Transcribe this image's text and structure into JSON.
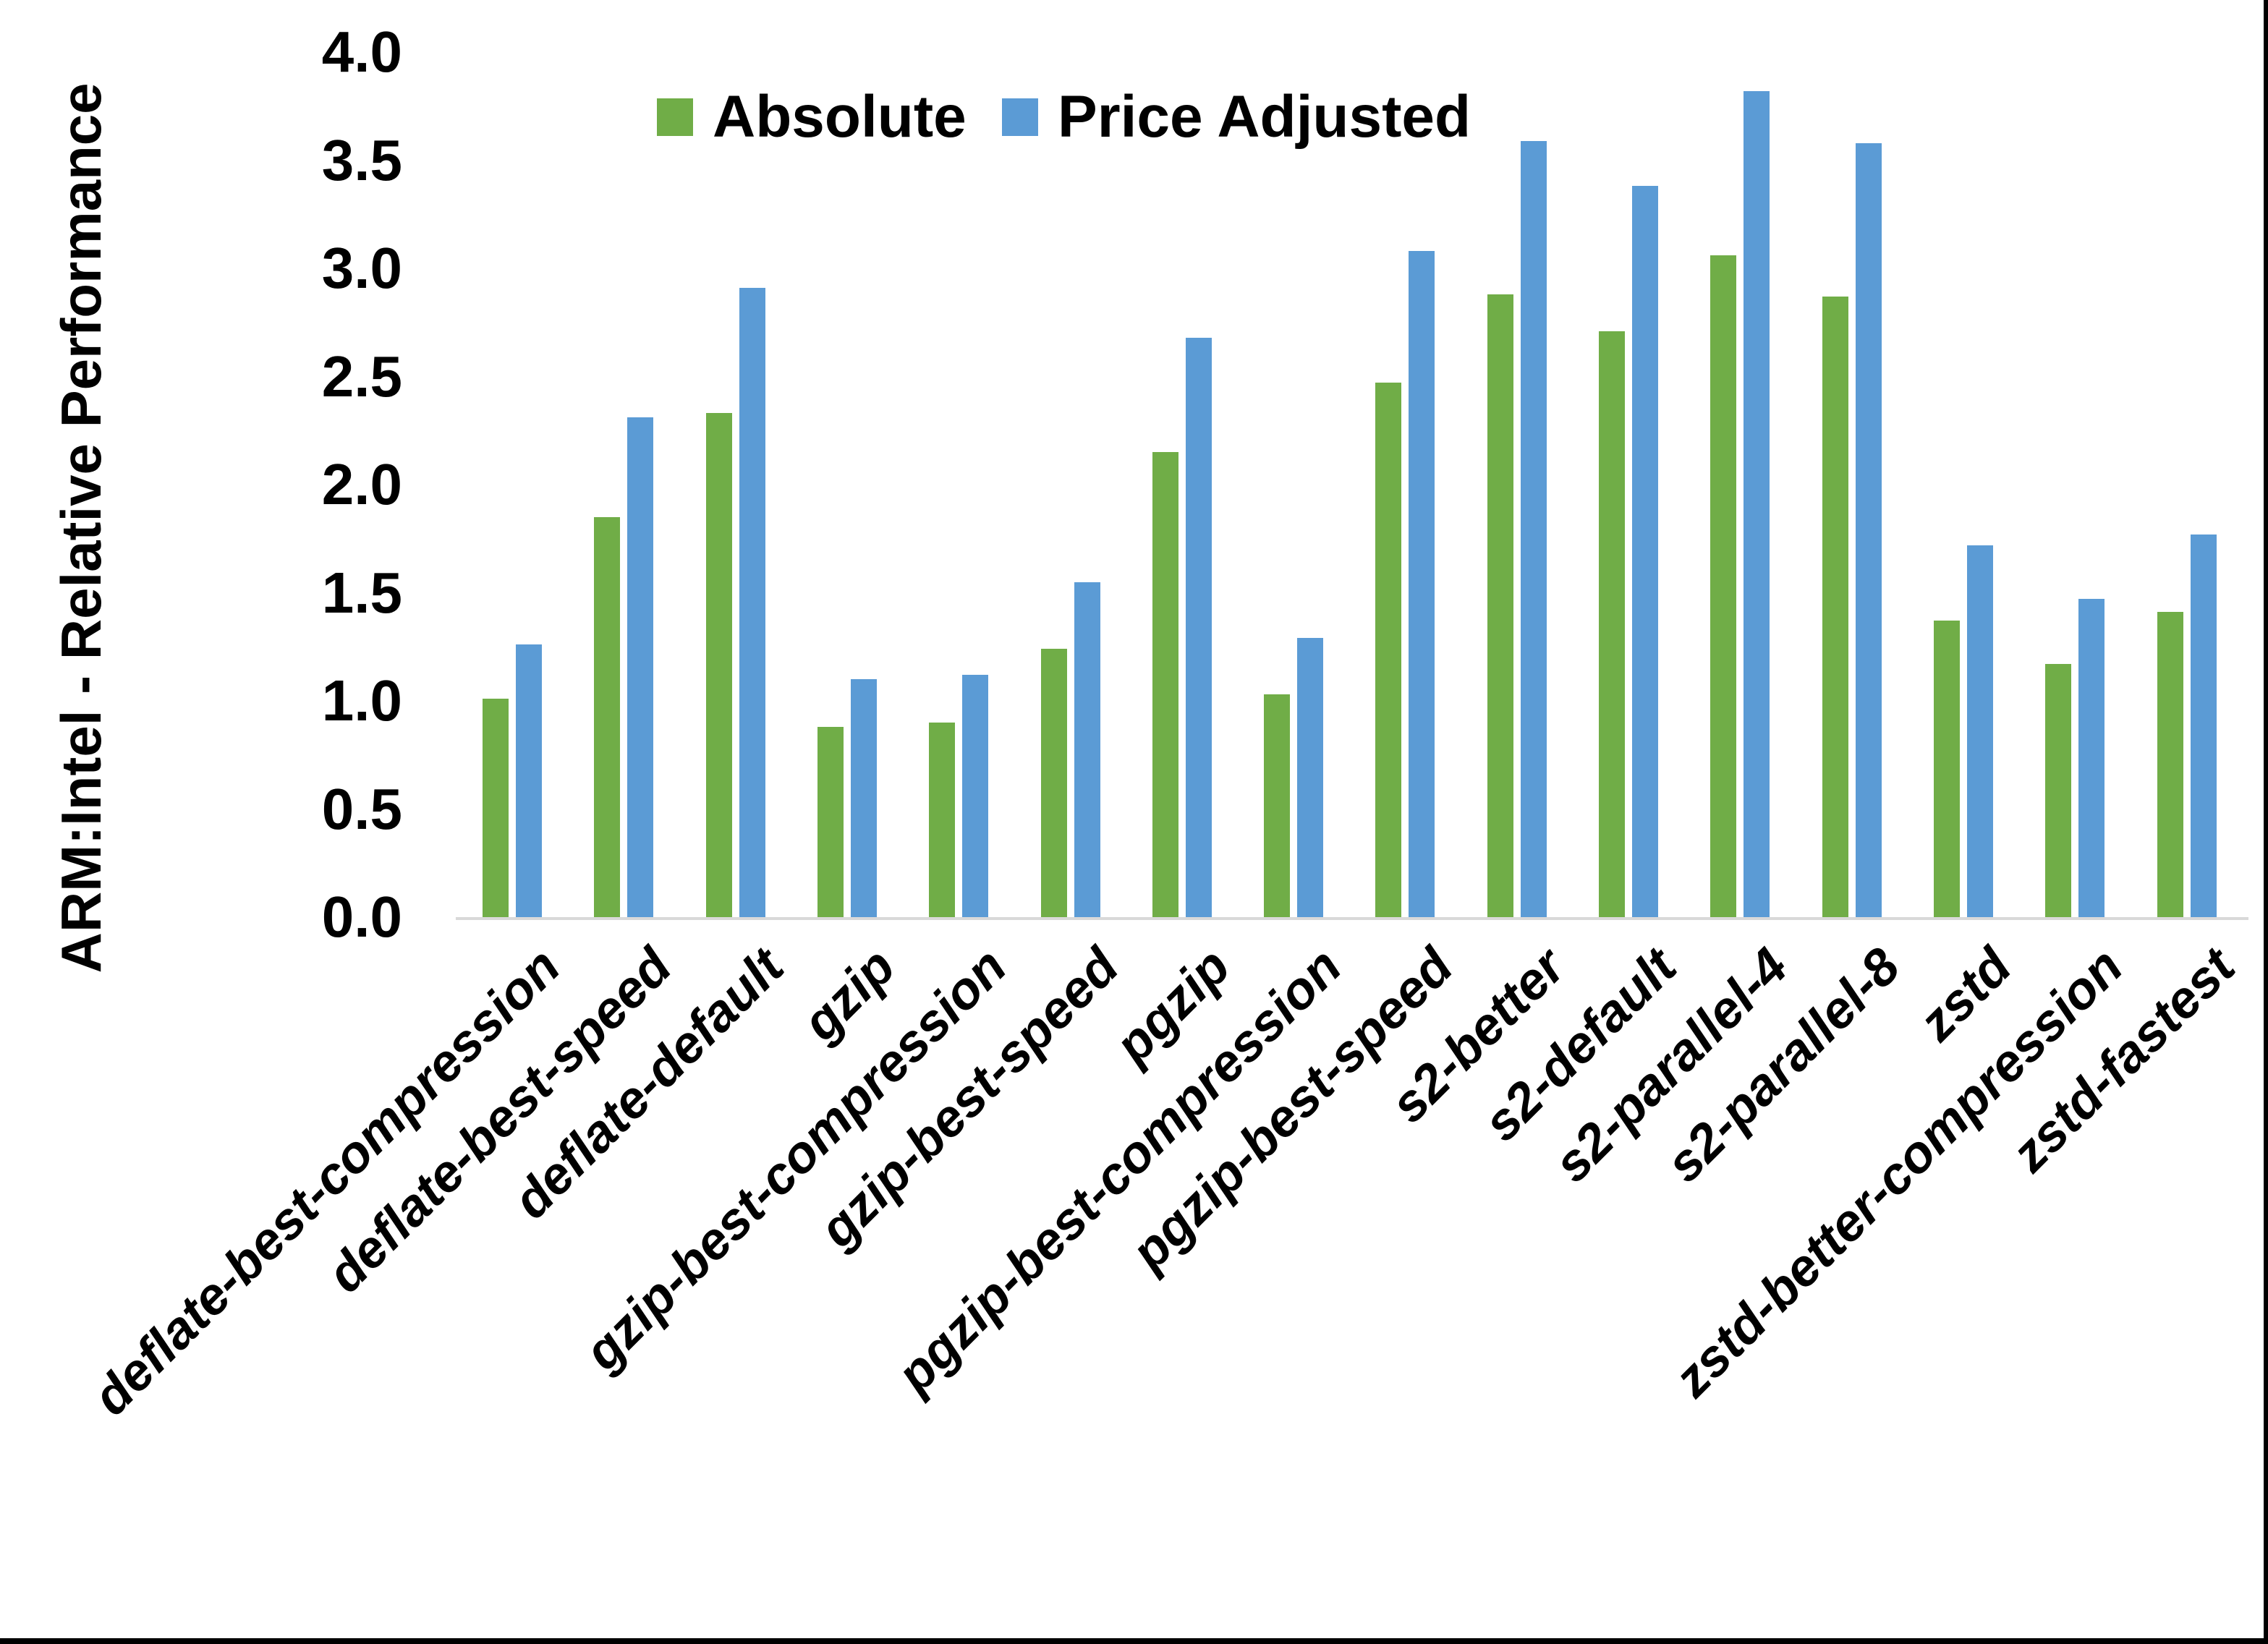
{
  "figure": {
    "background": "#FFFFFF",
    "frame_border_color": "#000000",
    "axis_line_color": "#D9D9D9",
    "text_color": "#000000"
  },
  "chart_data": {
    "type": "bar",
    "title": "",
    "xlabel": "",
    "ylabel": "ARM:Intel - Relative Performance",
    "ylim": [
      0.0,
      4.0
    ],
    "ytick_step": 0.5,
    "ytick_labels": [
      "0.0",
      "0.5",
      "1.0",
      "1.5",
      "2.0",
      "2.5",
      "3.0",
      "3.5",
      "4.0"
    ],
    "grid": false,
    "legend_position": "top-center",
    "categories": [
      "deflate-best-compression",
      "deflate-best-speed",
      "deflate-default",
      "gzip",
      "gzip-best-compression",
      "gzip-best-speed",
      "pgzip",
      "pgzip-best-compression",
      "pgzip-best-speed",
      "s2-better",
      "s2-default",
      "s2-parallel-4",
      "s2-parallel-8",
      "zstd",
      "zstd-better-compression",
      "zstd-fastest"
    ],
    "series": [
      {
        "name": "Absolute",
        "color": "#70AD47",
        "values": [
          1.01,
          1.85,
          2.33,
          0.88,
          0.9,
          1.24,
          2.15,
          1.03,
          2.47,
          2.88,
          2.71,
          3.06,
          2.87,
          1.37,
          1.17,
          1.41
        ]
      },
      {
        "name": "Price Adjusted",
        "color": "#5B9BD5",
        "values": [
          1.26,
          2.31,
          2.91,
          1.1,
          1.12,
          1.55,
          2.68,
          1.29,
          3.08,
          3.59,
          3.38,
          3.82,
          3.58,
          1.72,
          1.47,
          1.77
        ]
      }
    ]
  }
}
